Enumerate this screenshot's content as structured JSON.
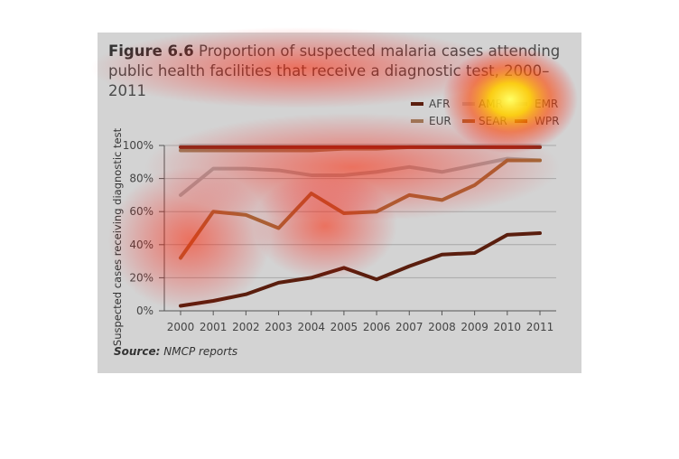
{
  "title": {
    "figure_label": "Figure 6.6",
    "text": "Proportion of suspected malaria cases attending public health facilities that receive a diagnostic test, 2000–2011"
  },
  "source": {
    "label": "Source:",
    "text": "NMCP reports"
  },
  "chart_data": {
    "type": "line",
    "title": "Proportion of suspected malaria cases attending public health facilities that receive a diagnostic test, 2000–2011",
    "ylabel": "Suspected cases receiving diagnostic test",
    "xlabel": "",
    "ylim": [
      0,
      100
    ],
    "yticks": [
      "0%",
      "20%",
      "40%",
      "60%",
      "80%",
      "100%"
    ],
    "ytick_values": [
      0,
      20,
      40,
      60,
      80,
      100
    ],
    "categories": [
      "2000",
      "2001",
      "2002",
      "2003",
      "2004",
      "2005",
      "2006",
      "2007",
      "2008",
      "2009",
      "2010",
      "2011"
    ],
    "legend_position": "top-right",
    "grid": true,
    "series": [
      {
        "name": "AFR",
        "color": "#5a1e0e",
        "values": [
          3,
          6,
          10,
          17,
          20,
          26,
          19,
          27,
          34,
          35,
          46,
          47
        ]
      },
      {
        "name": "AMR",
        "color": "#b2b2b2",
        "values": [
          100,
          100,
          100,
          100,
          100,
          100,
          100,
          100,
          100,
          100,
          100,
          100
        ]
      },
      {
        "name": "EMR",
        "color": "#a5a5a5",
        "values": [
          70,
          86,
          86,
          85,
          82,
          82,
          84,
          87,
          84,
          88,
          92,
          91
        ]
      },
      {
        "name": "EUR",
        "color": "#9a7a5a",
        "values": [
          97,
          97,
          97,
          97,
          97,
          98,
          98,
          99,
          99,
          99,
          99,
          99
        ]
      },
      {
        "name": "SEAR",
        "color": "#a06a3a",
        "values": [
          32,
          60,
          58,
          50,
          71,
          59,
          60,
          70,
          67,
          76,
          91,
          91
        ]
      },
      {
        "name": "WPR",
        "color": "#8a2a1a",
        "values": [
          99,
          99,
          99,
          99,
          99,
          99,
          99,
          99,
          99,
          99,
          99,
          99
        ]
      }
    ]
  }
}
